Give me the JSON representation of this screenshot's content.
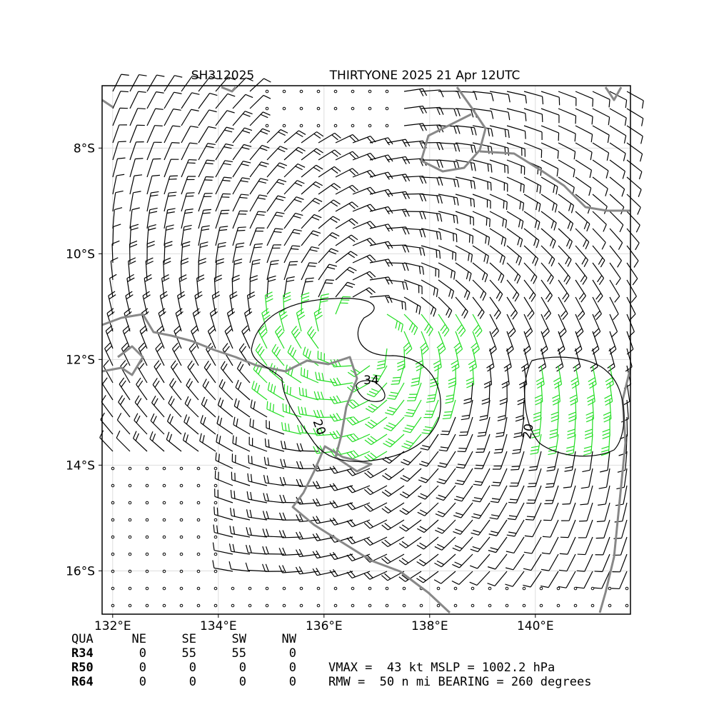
{
  "header": {
    "storm_id": "SH312025",
    "title": "THIRTYONE 2025 21 Apr 12UTC"
  },
  "map": {
    "xlim": [
      131.8,
      141.8
    ],
    "ylim": [
      -16.82,
      -6.82
    ],
    "grid": true,
    "xticks": [
      {
        "value": 132,
        "label": "132°E"
      },
      {
        "value": 134,
        "label": "134°E"
      },
      {
        "value": 136,
        "label": "136°E"
      },
      {
        "value": 138,
        "label": "138°E"
      },
      {
        "value": 140,
        "label": "140°E"
      }
    ],
    "yticks": [
      {
        "value": -8,
        "label": "8°S"
      },
      {
        "value": -10,
        "label": "10°S"
      },
      {
        "value": -12,
        "label": "12°S"
      },
      {
        "value": -14,
        "label": "14°S"
      },
      {
        "value": -16,
        "label": "16°S"
      }
    ],
    "contour_labels": [
      "34",
      "20",
      "20"
    ]
  },
  "table": {
    "header": [
      "QUA",
      "NE",
      "SE",
      "SW",
      "NW"
    ],
    "rows": [
      [
        "R34",
        0,
        55,
        55,
        0
      ],
      [
        "R50",
        0,
        0,
        0,
        0
      ],
      [
        "R64",
        0,
        0,
        0,
        0
      ]
    ]
  },
  "summary": [
    "VMAX =  43 kt MSLP = 1002.2 hPa",
    "RMW =  50 n mi BEARING = 260 degrees"
  ]
}
